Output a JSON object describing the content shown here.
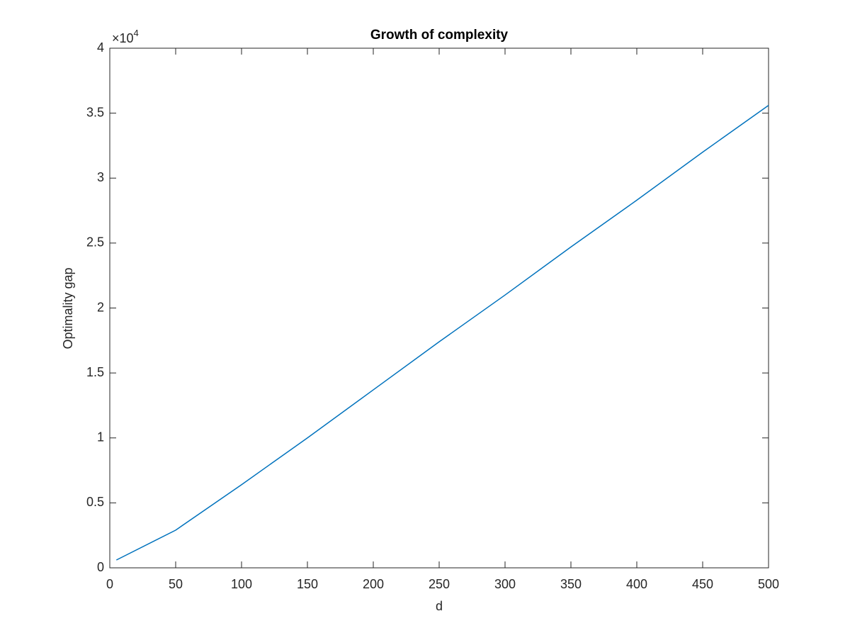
{
  "chart_data": {
    "type": "line",
    "title": "Growth of complexity",
    "x_label": "d",
    "y_label": "Optimality gap",
    "y_multiplier": {
      "base": "×10",
      "exponent": "4"
    },
    "x": [
      5,
      50,
      100,
      150,
      200,
      250,
      300,
      350,
      400,
      450,
      500
    ],
    "series": [
      {
        "name": "Optimality gap",
        "color": "#0072bd",
        "values": [
          0.06,
          0.29,
          0.64,
          1.0,
          1.37,
          1.74,
          2.1,
          2.47,
          2.83,
          3.2,
          3.56
        ]
      }
    ],
    "xlim": [
      0,
      500
    ],
    "xticks": [
      0,
      50,
      100,
      150,
      200,
      250,
      300,
      350,
      400,
      450,
      500
    ],
    "ylim": [
      0,
      4
    ],
    "yticks": [
      0,
      0.5,
      1,
      1.5,
      2,
      2.5,
      3,
      3.5,
      4
    ],
    "grid": false
  }
}
